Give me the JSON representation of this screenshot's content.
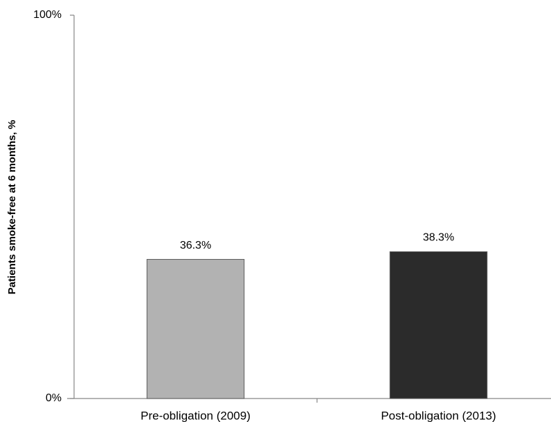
{
  "chart_data": {
    "type": "bar",
    "y_label": "Patients smoke-free at 6 months, %",
    "categories": [
      "Pre-obligation (2009)",
      "Post-obligation (2013)"
    ],
    "values": [
      36.3,
      38.3
    ],
    "value_labels": [
      "36.3%",
      "38.3%"
    ],
    "colors": [
      "#b2b2b2",
      "#2b2b2b"
    ],
    "ylim": [
      0,
      100
    ],
    "yticks": [
      {
        "value": 0,
        "label": "0%"
      },
      {
        "value": 100,
        "label": "100%"
      }
    ],
    "grid": false
  }
}
